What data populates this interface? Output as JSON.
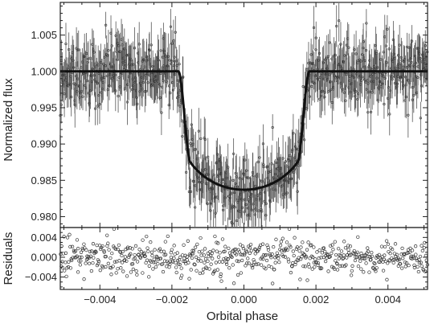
{
  "chart_data": [
    {
      "panel": "light-curve",
      "type": "scatter",
      "ylabel": "Normalized flux",
      "xlim": [
        -0.0051,
        0.0051
      ],
      "ylim": [
        0.9785,
        1.0095
      ],
      "x_ticks": [
        -0.004,
        -0.002,
        0.0,
        0.002,
        0.004
      ],
      "y_ticks": [
        0.98,
        0.985,
        0.99,
        0.995,
        1.0,
        1.005
      ],
      "y_tick_labels": [
        "0.980",
        "0.985",
        "0.990",
        "0.995",
        "1.000",
        "1.005"
      ],
      "grid": false,
      "series": [
        {
          "kind": "data-with-error-bars",
          "noise_sigma": 0.0022,
          "errorbar_halfwidth": 0.0025,
          "n_points": 760
        },
        {
          "kind": "model-fit",
          "baseline": 1.0,
          "transit_depth": 0.0163,
          "ingress_start": -0.00182,
          "full_start": -0.00148,
          "full_end": 0.00148,
          "egress_end": 0.00182,
          "limb_darkening_u": 0.55
        }
      ],
      "colors": {
        "data": "#444444",
        "model": "#222222"
      }
    },
    {
      "panel": "residuals",
      "type": "scatter",
      "ylabel": "Residuals",
      "xlabel": "Orbital phase",
      "xlim": [
        -0.0051,
        0.0051
      ],
      "ylim": [
        -0.0065,
        0.006
      ],
      "x_ticks": [
        -0.004,
        -0.002,
        0.0,
        0.002,
        0.004
      ],
      "x_tick_labels": [
        "−0.004",
        "−0.002",
        "0.000",
        "0.002",
        "0.004"
      ],
      "y_ticks": [
        -0.004,
        0.0,
        0.004
      ],
      "y_tick_labels": [
        "−0.004",
        "0.000",
        "0.004"
      ],
      "grid": false,
      "series": [
        {
          "kind": "residual-points",
          "sigma": 0.0019,
          "n_points": 620,
          "marker": "open-circle"
        }
      ],
      "colors": {
        "points": "#333333"
      }
    }
  ]
}
